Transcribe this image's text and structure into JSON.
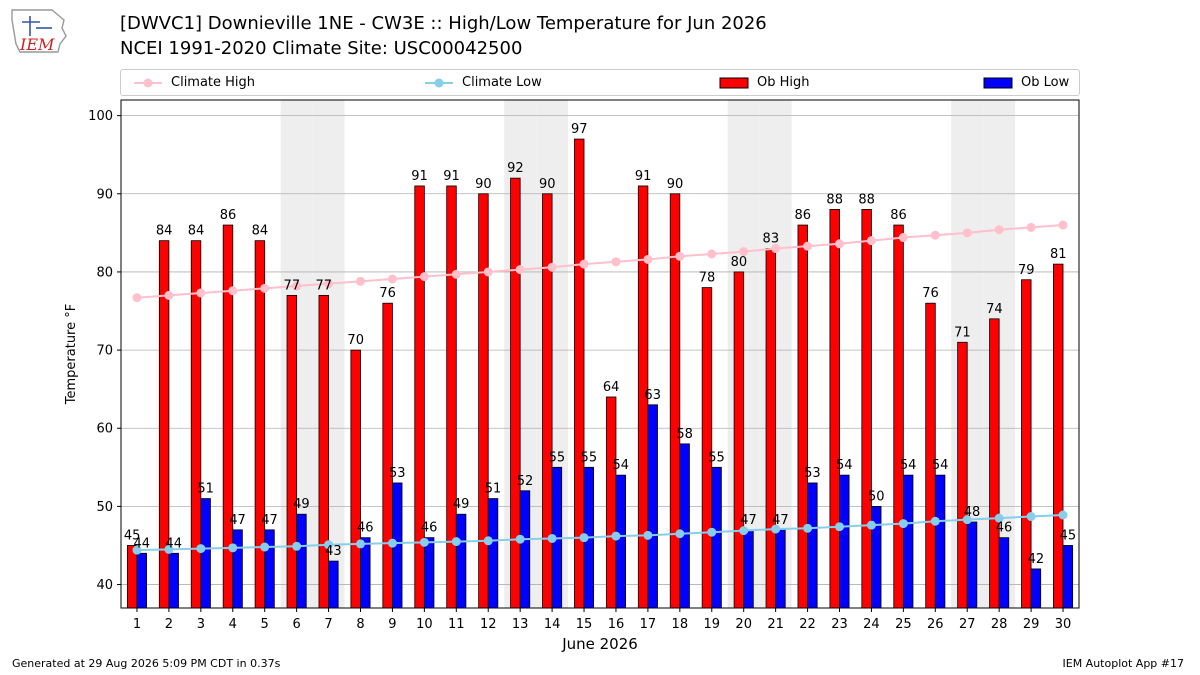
{
  "header": {
    "title": "[DWVC1] Downieville 1NE - CW3E :: High/Low Temperature for Jun 2026",
    "subtitle": "NCEI 1991-2020 Climate Site: USC00042500"
  },
  "logo": {
    "text": "IEM",
    "color": "#cc2222"
  },
  "footer": {
    "left": "Generated at 29 Aug 2026 5:09 PM CDT in 0.37s",
    "right": "IEM Autoplot App #17"
  },
  "chart_data": {
    "type": "bar",
    "xlabel": "June 2026",
    "ylabel": "Temperature °F",
    "ylim": [
      37,
      102
    ],
    "yticks": [
      40,
      50,
      60,
      70,
      80,
      90,
      100
    ],
    "grid": true,
    "legend_placement": "top",
    "weekend_shading_days": [
      6,
      7,
      13,
      14,
      20,
      21,
      27,
      28
    ],
    "categories": [
      "1",
      "2",
      "3",
      "4",
      "5",
      "6",
      "7",
      "8",
      "9",
      "10",
      "11",
      "12",
      "13",
      "14",
      "15",
      "16",
      "17",
      "18",
      "19",
      "20",
      "21",
      "22",
      "23",
      "24",
      "25",
      "26",
      "27",
      "28",
      "29",
      "30"
    ],
    "series": [
      {
        "name": "Climate High",
        "kind": "line",
        "color": "#ffc0cb",
        "values": [
          76.7,
          77.0,
          77.3,
          77.6,
          77.9,
          78.2,
          78.5,
          78.8,
          79.1,
          79.4,
          79.7,
          80.0,
          80.3,
          80.6,
          81.0,
          81.3,
          81.6,
          82.0,
          82.3,
          82.6,
          83.0,
          83.3,
          83.6,
          84.0,
          84.4,
          84.7,
          85.0,
          85.4,
          85.7,
          86.0
        ]
      },
      {
        "name": "Climate Low",
        "kind": "line",
        "color": "#87ceeb",
        "values": [
          44.4,
          44.5,
          44.6,
          44.7,
          44.8,
          44.9,
          45.1,
          45.2,
          45.3,
          45.4,
          45.5,
          45.6,
          45.8,
          45.9,
          46.0,
          46.2,
          46.3,
          46.5,
          46.7,
          46.9,
          47.1,
          47.2,
          47.4,
          47.6,
          47.8,
          48.1,
          48.3,
          48.5,
          48.7,
          48.9
        ]
      },
      {
        "name": "Ob High",
        "kind": "bar",
        "color": "#ff0000",
        "values": [
          45,
          84,
          84,
          86,
          84,
          77,
          77,
          70,
          76,
          91,
          91,
          90,
          92,
          90,
          97,
          64,
          91,
          90,
          78,
          80,
          83,
          86,
          88,
          88,
          86,
          76,
          71,
          74,
          79,
          81
        ]
      },
      {
        "name": "Ob Low",
        "kind": "bar",
        "color": "#0000ff",
        "values": [
          44,
          44,
          51,
          47,
          47,
          49,
          43,
          46,
          53,
          46,
          49,
          51,
          52,
          55,
          55,
          54,
          63,
          58,
          55,
          47,
          47,
          53,
          54,
          50,
          54,
          54,
          48,
          46,
          42,
          45
        ]
      }
    ]
  }
}
